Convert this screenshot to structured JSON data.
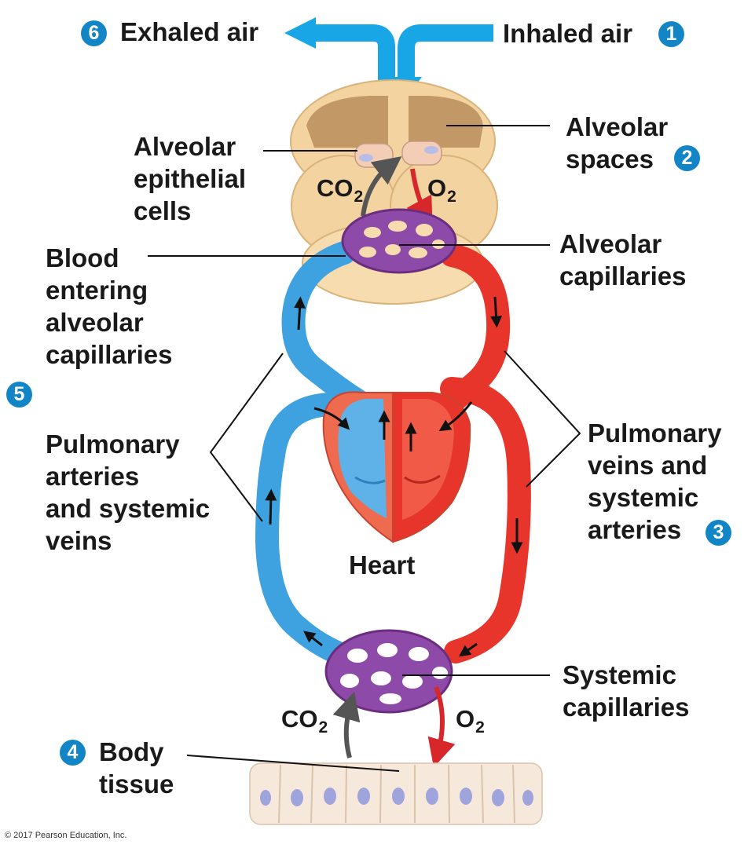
{
  "labels": {
    "exhaled_air": "Exhaled air",
    "inhaled_air": "Inhaled air",
    "alveolar_spaces": [
      "Alveolar",
      "spaces"
    ],
    "alveolar_epithelial_cells": [
      "Alveolar",
      "epithelial",
      "cells"
    ],
    "alveolar_capillaries": [
      "Alveolar",
      "capillaries"
    ],
    "blood_entering": [
      "Blood",
      "entering",
      "alveolar",
      "capillaries"
    ],
    "pulmonary_arteries": [
      "Pulmonary",
      "arteries",
      "and systemic",
      "veins"
    ],
    "pulmonary_veins": [
      "Pulmonary",
      "veins and",
      "systemic",
      "arteries"
    ],
    "heart": "Heart",
    "systemic_capillaries": [
      "Systemic",
      "capillaries"
    ],
    "body_tissue": [
      "Body",
      "tissue"
    ]
  },
  "gases": {
    "co2_top": {
      "base": "CO",
      "sub": "2"
    },
    "o2_top": {
      "base": "O",
      "sub": "2"
    },
    "co2_bottom": {
      "base": "CO",
      "sub": "2"
    },
    "o2_bottom": {
      "base": "O",
      "sub": "2"
    }
  },
  "steps": {
    "s1": "1",
    "s2": "2",
    "s3": "3",
    "s4": "4",
    "s5": "5",
    "s6": "6"
  },
  "copyright": "© 2017 Pearson Education, Inc.",
  "colors": {
    "air_arrow": "#19a6e6",
    "badge": "#1185c6",
    "deoxygenated_blood": "#3ea2e0",
    "oxygenated_blood": "#e8352b",
    "capillary": "#8e4aa8",
    "alveolus": "#f3d3a0",
    "tissue": "#f6e9dc"
  },
  "icons": [
    "exhaled-air-arrow",
    "inhaled-air-arrow",
    "co2-arrow",
    "o2-arrow",
    "flow-arrow"
  ]
}
